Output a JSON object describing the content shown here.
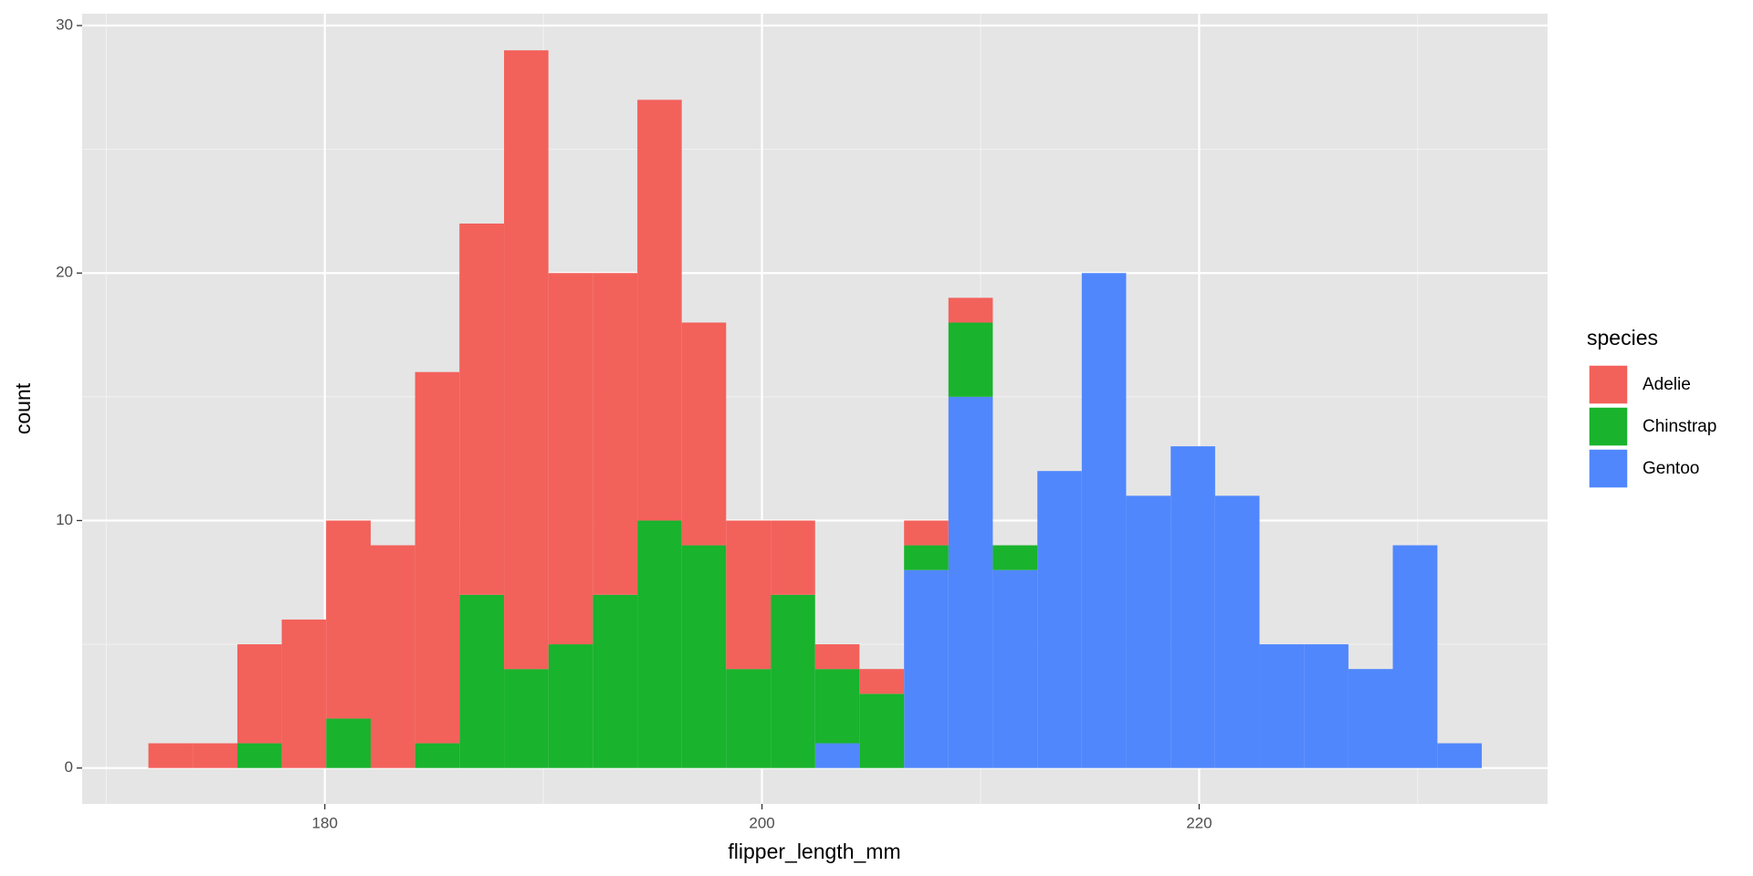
{
  "chart_data": {
    "type": "histogram",
    "stacked": true,
    "x_label": "flipper_length_mm",
    "y_label": "count",
    "legend_title": "species",
    "legend_position": "right",
    "bins": [
      171.93,
      173.96,
      176.0,
      178.03,
      180.06,
      182.1,
      184.13,
      186.16,
      188.2,
      190.23,
      192.26,
      194.3,
      196.33,
      198.36,
      200.4,
      202.43,
      204.46,
      206.5,
      208.53,
      210.56,
      212.6,
      214.63,
      216.66,
      218.7,
      220.73,
      222.76,
      224.8,
      226.83,
      228.86,
      230.9,
      232.93
    ],
    "series": [
      {
        "name": "Adelie",
        "color": "#f3615b",
        "values": [
          1,
          1,
          4,
          6,
          8,
          9,
          15,
          15,
          25,
          15,
          13,
          17,
          9,
          6,
          3,
          1,
          1,
          1,
          1,
          0,
          0,
          0,
          0,
          0,
          0,
          0,
          0,
          0,
          0,
          0
        ]
      },
      {
        "name": "Chinstrap",
        "color": "#19b32d",
        "values": [
          0,
          0,
          1,
          0,
          2,
          0,
          1,
          7,
          4,
          5,
          7,
          10,
          9,
          4,
          7,
          3,
          3,
          1,
          3,
          1,
          0,
          0,
          0,
          0,
          0,
          0,
          0,
          0,
          0,
          0
        ]
      },
      {
        "name": "Gentoo",
        "color": "#5087fd",
        "values": [
          0,
          0,
          0,
          0,
          0,
          0,
          0,
          0,
          0,
          0,
          0,
          0,
          0,
          0,
          0,
          1,
          0,
          8,
          15,
          8,
          12,
          20,
          11,
          13,
          11,
          5,
          5,
          4,
          9,
          1
        ]
      }
    ],
    "xlim": [
      168.9,
      235.94
    ],
    "xticks": [
      180,
      200,
      220
    ],
    "x_minor_ticks": [
      170,
      190,
      210,
      230
    ],
    "ylim": [
      -1.45,
      30.48
    ],
    "yticks": [
      0,
      10,
      20,
      30
    ],
    "y_minor_ticks": [
      5,
      15,
      25
    ],
    "grid": true
  }
}
